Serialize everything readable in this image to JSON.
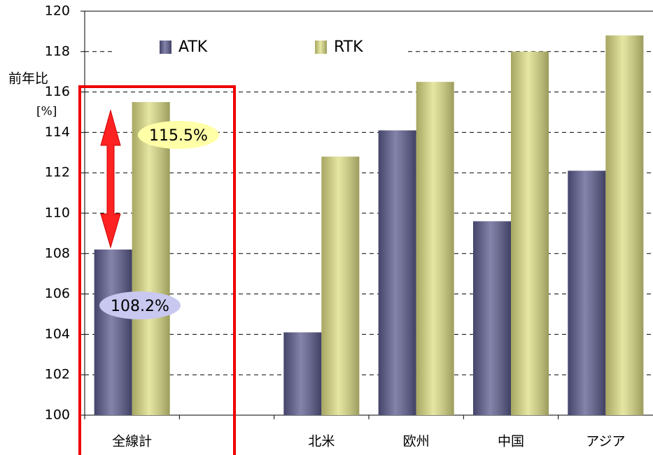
{
  "chart_data": {
    "type": "bar",
    "y_axis_label": "前年比",
    "y_axis_unit": "[%]",
    "categories": [
      "全線計",
      null,
      "北米",
      "欧州",
      "中国",
      "アジア"
    ],
    "series": [
      {
        "name": "ATK",
        "color": "#5b5b8e",
        "values": [
          108.2,
          null,
          104.1,
          114.1,
          109.6,
          112.1
        ],
        "value_labels": [
          "108.2%",
          null,
          null,
          null,
          null,
          null
        ]
      },
      {
        "name": "RTK",
        "color": "#dede84",
        "values": [
          115.5,
          null,
          112.8,
          116.5,
          118.0,
          118.8
        ],
        "value_labels": [
          "115.5%",
          null,
          null,
          null,
          null,
          null
        ]
      }
    ],
    "ylim": [
      100,
      120
    ],
    "yticks": [
      100,
      102,
      104,
      106,
      108,
      110,
      112,
      114,
      116,
      118,
      120
    ],
    "grid": true
  }
}
